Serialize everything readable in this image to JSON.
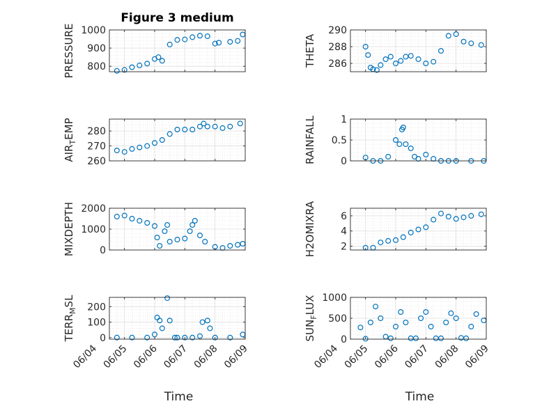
{
  "chart_data": [
    {
      "type": "scatter",
      "title": "Figure 3 medium",
      "ylabel": "PRESSURE",
      "xlim": [
        "06/04 12:00",
        "06/09"
      ],
      "ylim": [
        770,
        1000
      ],
      "yticks": [
        800,
        900,
        1000
      ],
      "x": [
        "06/04 18:00",
        "06/05 00:00",
        "06/05 06:00",
        "06/05 12:00",
        "06/05 18:00",
        "06/06 00:00",
        "06/06 03:00",
        "06/06 06:00",
        "06/06 12:00",
        "06/06 18:00",
        "06/07 00:00",
        "06/07 06:00",
        "06/07 12:00",
        "06/07 18:00",
        "06/08 00:00",
        "06/08 03:00",
        "06/08 12:00",
        "06/08 18:00",
        "06/08 22:00"
      ],
      "y": [
        775,
        780,
        795,
        805,
        815,
        840,
        850,
        830,
        920,
        945,
        948,
        960,
        968,
        965,
        925,
        930,
        935,
        940,
        975
      ]
    },
    {
      "type": "scatter",
      "ylabel": "THETA",
      "xlim": [
        "06/04 12:00",
        "06/09"
      ],
      "ylim": [
        285,
        290
      ],
      "yticks": [
        286,
        288,
        290
      ],
      "x": [
        "06/05 00:00",
        "06/05 02:00",
        "06/05 04:00",
        "06/05 06:00",
        "06/05 09:00",
        "06/05 12:00",
        "06/05 16:00",
        "06/05 20:00",
        "06/06 00:00",
        "06/06 04:00",
        "06/06 08:00",
        "06/06 12:00",
        "06/06 18:00",
        "06/07 00:00",
        "06/07 06:00",
        "06/07 12:00",
        "06/07 18:00",
        "06/08 00:00",
        "06/08 06:00",
        "06/08 12:00",
        "06/08 20:00"
      ],
      "y": [
        288.0,
        287.0,
        285.5,
        285.3,
        285.2,
        285.8,
        286.5,
        286.8,
        286.0,
        286.3,
        286.8,
        286.9,
        286.5,
        286.0,
        286.2,
        287.5,
        289.3,
        289.5,
        288.6,
        288.4,
        288.2
      ]
    },
    {
      "type": "scatter",
      "ylabel": "AIR_TEMP",
      "xlim": [
        "06/04 12:00",
        "06/09"
      ],
      "ylim": [
        260,
        288
      ],
      "yticks": [
        260,
        270,
        280
      ],
      "x": [
        "06/04 18:00",
        "06/05 00:00",
        "06/05 06:00",
        "06/05 12:00",
        "06/05 18:00",
        "06/06 00:00",
        "06/06 06:00",
        "06/06 12:00",
        "06/06 18:00",
        "06/07 00:00",
        "06/07 06:00",
        "06/07 12:00",
        "06/07 15:00",
        "06/07 18:00",
        "06/08 00:00",
        "06/08 06:00",
        "06/08 12:00",
        "06/08 20:00"
      ],
      "y": [
        267,
        266,
        268,
        269,
        270,
        272,
        274,
        278,
        281,
        281,
        281,
        283,
        285,
        283,
        283,
        282,
        283,
        285
      ]
    },
    {
      "type": "scatter",
      "ylabel": "RAINFALL",
      "xlim": [
        "06/04 12:00",
        "06/09"
      ],
      "ylim": [
        0,
        1
      ],
      "yticks": [
        0,
        0.5,
        1
      ],
      "x": [
        "06/05 00:00",
        "06/05 06:00",
        "06/05 12:00",
        "06/05 18:00",
        "06/06 00:00",
        "06/06 03:00",
        "06/06 05:00",
        "06/06 06:00",
        "06/06 08:00",
        "06/06 12:00",
        "06/06 15:00",
        "06/06 18:00",
        "06/07 00:00",
        "06/07 06:00",
        "06/07 12:00",
        "06/07 18:00",
        "06/08 00:00",
        "06/08 12:00",
        "06/08 22:00"
      ],
      "y": [
        0.08,
        0,
        0,
        0.1,
        0.5,
        0.4,
        0.75,
        0.8,
        0.4,
        0.3,
        0.1,
        0.05,
        0.15,
        0.05,
        0,
        0,
        0,
        0,
        0
      ]
    },
    {
      "type": "scatter",
      "ylabel": "MIXDEPTH",
      "xlim": [
        "06/04 12:00",
        "06/09"
      ],
      "ylim": [
        0,
        2000
      ],
      "yticks": [
        0,
        1000,
        2000
      ],
      "x": [
        "06/04 18:00",
        "06/05 00:00",
        "06/05 06:00",
        "06/05 12:00",
        "06/05 18:00",
        "06/06 00:00",
        "06/06 02:00",
        "06/06 04:00",
        "06/06 08:00",
        "06/06 10:00",
        "06/06 12:00",
        "06/06 18:00",
        "06/07 00:00",
        "06/07 04:00",
        "06/07 06:00",
        "06/07 08:00",
        "06/07 12:00",
        "06/07 16:00",
        "06/08 00:00",
        "06/08 06:00",
        "06/08 12:00",
        "06/08 18:00",
        "06/08 22:00"
      ],
      "y": [
        1600,
        1650,
        1500,
        1400,
        1300,
        1150,
        600,
        200,
        900,
        1200,
        400,
        500,
        550,
        900,
        1200,
        1400,
        700,
        400,
        150,
        100,
        200,
        250,
        300
      ]
    },
    {
      "type": "scatter",
      "ylabel": "H2OMIXRA",
      "xlim": [
        "06/04 12:00",
        "06/09"
      ],
      "ylim": [
        1.5,
        7
      ],
      "yticks": [
        2,
        4,
        6
      ],
      "x": [
        "06/05 00:00",
        "06/05 06:00",
        "06/05 12:00",
        "06/05 18:00",
        "06/06 00:00",
        "06/06 06:00",
        "06/06 12:00",
        "06/06 18:00",
        "06/07 00:00",
        "06/07 06:00",
        "06/07 12:00",
        "06/07 18:00",
        "06/08 00:00",
        "06/08 06:00",
        "06/08 12:00",
        "06/08 20:00"
      ],
      "y": [
        1.8,
        1.8,
        2.5,
        2.7,
        2.8,
        3.2,
        3.8,
        4.2,
        4.5,
        5.5,
        6.3,
        5.9,
        5.6,
        5.8,
        6.0,
        6.2
      ]
    },
    {
      "type": "scatter",
      "ylabel": "TERR_MSL",
      "xlim": [
        "06/04 12:00",
        "06/09"
      ],
      "ylim": [
        -10,
        260
      ],
      "yticks": [
        0,
        100,
        200
      ],
      "x": [
        "06/04 18:00",
        "06/05 06:00",
        "06/05 18:00",
        "06/06 00:00",
        "06/06 02:00",
        "06/06 04:00",
        "06/06 06:00",
        "06/06 10:00",
        "06/06 12:00",
        "06/06 16:00",
        "06/06 18:00",
        "06/07 00:00",
        "06/07 06:00",
        "06/07 12:00",
        "06/07 14:00",
        "06/07 18:00",
        "06/07 20:00",
        "06/08 00:00",
        "06/08 12:00",
        "06/08 22:00"
      ],
      "y": [
        0,
        0,
        0,
        20,
        130,
        110,
        60,
        255,
        110,
        0,
        0,
        0,
        0,
        10,
        100,
        110,
        60,
        0,
        0,
        20
      ]
    },
    {
      "type": "scatter",
      "ylabel": "SUN_FLUX",
      "xlim": [
        "06/04 12:00",
        "06/09"
      ],
      "ylim": [
        0,
        1000
      ],
      "yticks": [
        0,
        500,
        1000
      ],
      "x": [
        "06/04 20:00",
        "06/05 00:00",
        "06/05 04:00",
        "06/05 08:00",
        "06/05 12:00",
        "06/05 16:00",
        "06/05 20:00",
        "06/06 00:00",
        "06/06 04:00",
        "06/06 08:00",
        "06/06 12:00",
        "06/06 16:00",
        "06/06 20:00",
        "06/07 00:00",
        "06/07 04:00",
        "06/07 08:00",
        "06/07 12:00",
        "06/07 16:00",
        "06/07 20:00",
        "06/08 00:00",
        "06/08 04:00",
        "06/08 08:00",
        "06/08 12:00",
        "06/08 16:00",
        "06/08 22:00"
      ],
      "y": [
        280,
        10,
        400,
        780,
        500,
        60,
        20,
        300,
        650,
        400,
        20,
        20,
        500,
        650,
        300,
        20,
        20,
        400,
        620,
        500,
        30,
        20,
        300,
        600,
        450
      ]
    }
  ],
  "xticks": [
    "06/04",
    "06/05",
    "06/06",
    "06/07",
    "06/08",
    "06/09"
  ],
  "xlabel": "Time",
  "colors": {
    "marker": "#0072BD",
    "axis": "#262626",
    "grid": "#dfdfdf"
  }
}
